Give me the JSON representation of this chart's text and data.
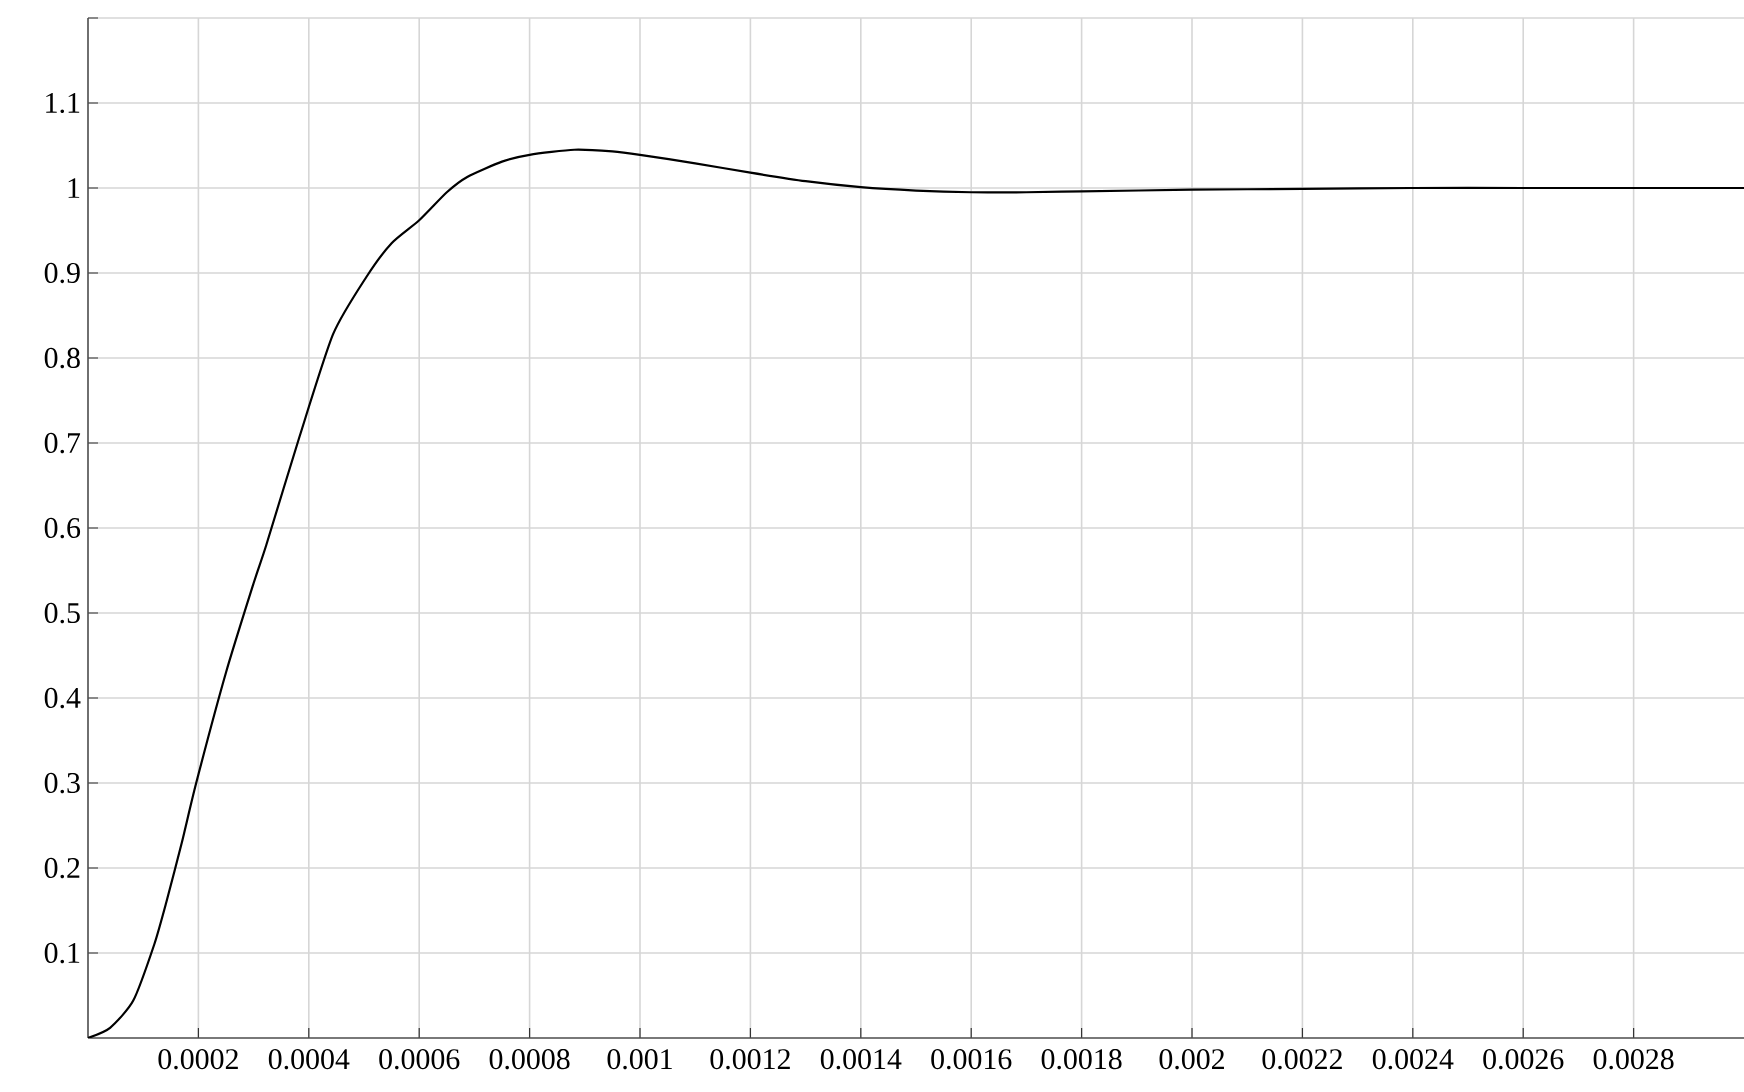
{
  "chart_data": {
    "type": "line",
    "x": [
      0,
      4e-05,
      8.2e-05,
      0.00012,
      0.000142,
      0.00017,
      0.000196,
      0.00025,
      0.0003,
      0.000323,
      0.000383,
      0.000444,
      0.000504,
      0.00055,
      0.0006,
      0.00065,
      0.000687,
      0.00075,
      0.0008,
      0.000881,
      0.00095,
      0.001,
      0.0011,
      0.0012,
      0.0013,
      0.0014,
      0.0015,
      0.0016,
      0.0017,
      0.0018,
      0.002,
      0.0022,
      0.0024,
      0.0026,
      0.0028,
      0.003
    ],
    "series": [
      {
        "color": "#000000",
        "values": [
          0,
          0.012,
          0.044,
          0.11,
          0.16,
          0.23,
          0.3,
          0.43,
          0.535,
          0.58,
          0.707,
          0.828,
          0.895,
          0.935,
          0.962,
          0.995,
          1.013,
          1.031,
          1.039,
          1.045,
          1.043,
          1.039,
          1.029,
          1.018,
          1.008,
          1.001,
          0.997,
          0.995,
          0.995,
          0.996,
          0.998,
          0.999,
          1,
          1,
          1,
          1
        ]
      }
    ],
    "xlim": [
      0,
      0.003
    ],
    "ylim": [
      0,
      1.2
    ],
    "xticks": [
      0.0002,
      0.0004,
      0.0006,
      0.0008,
      0.001,
      0.0012,
      0.0014,
      0.0016,
      0.0018,
      0.002,
      0.0022,
      0.0024,
      0.0026,
      0.0028
    ],
    "yticks": [
      0.1,
      0.2,
      0.3,
      0.4,
      0.5,
      0.6,
      0.7,
      0.8,
      0.9,
      1,
      1.1,
      {
        "value": 1.2,
        "label": null
      }
    ],
    "grid": true
  }
}
